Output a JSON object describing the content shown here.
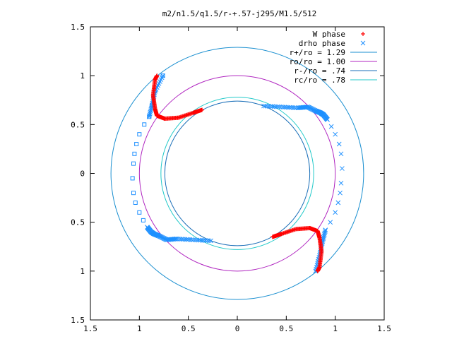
{
  "chart_data": {
    "type": "scatter",
    "title": "m2/n1.5/q1.5/r-+.57-j295/M1.5/512",
    "xlabel": "",
    "ylabel": "",
    "xlim": [
      -1.5,
      1.5
    ],
    "ylim": [
      -1.5,
      1.5
    ],
    "x_ticks": [
      "1.5",
      "1",
      "0.5",
      "0",
      "0.5",
      "1",
      "1.5"
    ],
    "y_ticks": [
      "1.5",
      "1",
      "0.5",
      "0",
      "0.5",
      "1",
      "1.5"
    ],
    "grid": false,
    "legend_position": "top-right",
    "series": [
      {
        "name": "W phase",
        "kind": "points",
        "marker": "plus",
        "color": "#ff0000"
      },
      {
        "name": "drho phase",
        "kind": "points",
        "marker": "x",
        "color": "#1e90ff"
      },
      {
        "name": "r+/ro = 1.29",
        "kind": "circle",
        "radius": 1.29,
        "color": "#1a8fd0"
      },
      {
        "name": "ro/ro = 1.00",
        "kind": "circle",
        "radius": 1.0,
        "color": "#b026c0"
      },
      {
        "name": "r-/ro = .74",
        "kind": "circle",
        "radius": 0.74,
        "color": "#1a6fb8"
      },
      {
        "name": "rc/ro = .78",
        "kind": "circle",
        "radius": 0.78,
        "color": "#21c9c9"
      }
    ],
    "w_phase_arms": [
      {
        "points": [
          [
            -0.82,
            0.59
          ],
          [
            -0.74,
            0.56
          ],
          [
            -0.6,
            0.57
          ],
          [
            -0.45,
            0.62
          ],
          [
            -0.36,
            0.65
          ],
          [
            -0.84,
            0.66
          ],
          [
            -0.86,
            0.8
          ],
          [
            -0.84,
            0.96
          ],
          [
            -0.82,
            1.0
          ]
        ]
      },
      {
        "points": [
          [
            0.82,
            -0.59
          ],
          [
            0.74,
            -0.56
          ],
          [
            0.6,
            -0.57
          ],
          [
            0.45,
            -0.62
          ],
          [
            0.36,
            -0.65
          ],
          [
            0.84,
            -0.66
          ],
          [
            0.86,
            -0.8
          ],
          [
            0.84,
            -0.96
          ],
          [
            0.82,
            -1.0
          ]
        ]
      }
    ],
    "drho_phase_arms": [
      {
        "marker": "x",
        "points": [
          [
            0.27,
            0.69
          ],
          [
            0.45,
            0.68
          ],
          [
            0.62,
            0.67
          ],
          [
            0.72,
            0.68
          ],
          [
            0.8,
            0.64
          ],
          [
            0.85,
            0.62
          ],
          [
            0.88,
            0.6
          ],
          [
            0.92,
            0.55
          ],
          [
            0.96,
            0.48
          ],
          [
            1.0,
            0.4
          ],
          [
            1.04,
            0.3
          ],
          [
            1.06,
            0.2
          ],
          [
            1.07,
            0.05
          ],
          [
            1.06,
            -0.1
          ],
          [
            1.05,
            -0.2
          ],
          [
            1.03,
            -0.3
          ],
          [
            1.0,
            -0.4
          ],
          [
            0.95,
            -0.5
          ],
          [
            0.9,
            -0.58
          ],
          [
            0.87,
            -0.7
          ],
          [
            0.84,
            -0.84
          ],
          [
            0.8,
            -1.0
          ]
        ]
      },
      {
        "marker": "square",
        "points": [
          [
            -0.27,
            -0.69
          ],
          [
            -0.45,
            -0.68
          ],
          [
            -0.62,
            -0.67
          ],
          [
            -0.72,
            -0.68
          ],
          [
            -0.8,
            -0.64
          ],
          [
            -0.85,
            -0.62
          ],
          [
            -0.88,
            -0.6
          ],
          [
            -0.92,
            -0.55
          ],
          [
            -0.96,
            -0.48
          ],
          [
            -1.0,
            -0.4
          ],
          [
            -1.04,
            -0.3
          ],
          [
            -1.06,
            -0.2
          ],
          [
            -1.07,
            -0.05
          ],
          [
            -1.06,
            0.1
          ],
          [
            -1.05,
            0.2
          ],
          [
            -1.03,
            0.3
          ],
          [
            -1.0,
            0.4
          ],
          [
            -0.95,
            0.5
          ],
          [
            -0.9,
            0.58
          ],
          [
            -0.87,
            0.7
          ],
          [
            -0.84,
            0.84
          ],
          [
            -0.76,
            1.0
          ]
        ]
      }
    ]
  }
}
